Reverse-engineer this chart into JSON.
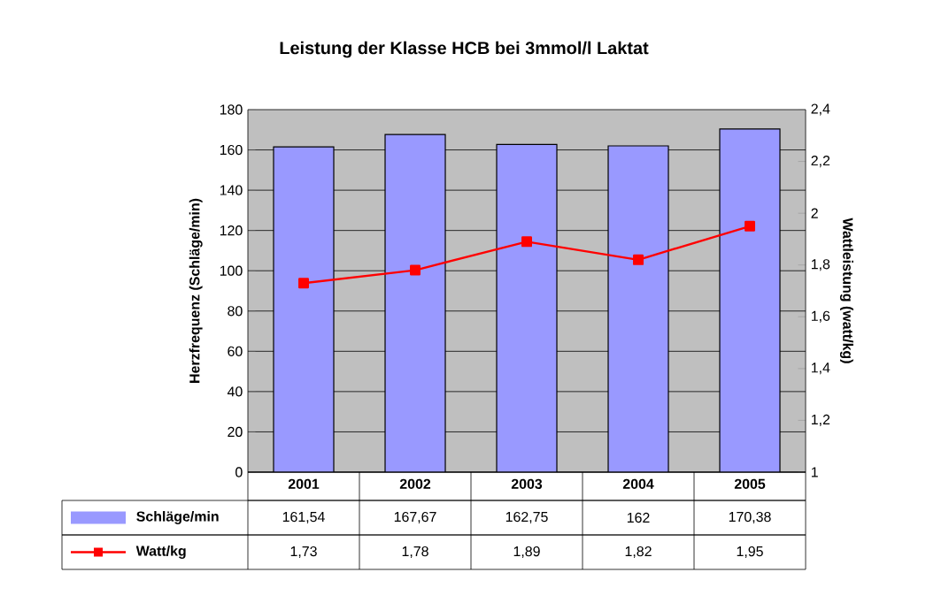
{
  "chart_data": {
    "type": "bar",
    "title": "Leistung der Klasse HCB bei 3mmol/l Laktat",
    "ylabel": "Herzfrequenz (Schläge/min)",
    "y2label": "Wattleistung (watt/kg)",
    "categories": [
      "2001",
      "2002",
      "2003",
      "2004",
      "2005"
    ],
    "series": [
      {
        "name": "Schläge/min",
        "color": "#9999ff",
        "values": [
          161.54,
          167.67,
          162.75,
          162,
          170.38
        ],
        "value_labels": [
          "161,54",
          "167,67",
          "162,75",
          "162",
          "170,38"
        ]
      },
      {
        "name": "Watt/kg",
        "type": "line",
        "axis": "y2",
        "color": "#ff0000",
        "marker": "square",
        "line_style": "solid",
        "values": [
          1.73,
          1.78,
          1.89,
          1.82,
          1.95
        ],
        "value_labels": [
          "1,73",
          "1,78",
          "1,89",
          "1,82",
          "1,95"
        ]
      }
    ],
    "ylim": [
      0,
      180
    ],
    "yticks": [
      0,
      20,
      40,
      60,
      80,
      100,
      120,
      140,
      160,
      180
    ],
    "y2lim": [
      1,
      2.4
    ],
    "y2ticks": [
      1,
      {
        "value": 1.2,
        "label": "1,2"
      },
      {
        "value": 1.4,
        "label": "1,4"
      },
      {
        "value": 1.6,
        "label": "1,6"
      },
      {
        "value": 1.8,
        "label": "1,8"
      },
      2,
      {
        "value": 2.2,
        "label": "2,2"
      },
      {
        "value": 2.4,
        "label": "2,4"
      }
    ],
    "grid": "y",
    "legend": "bottom"
  }
}
